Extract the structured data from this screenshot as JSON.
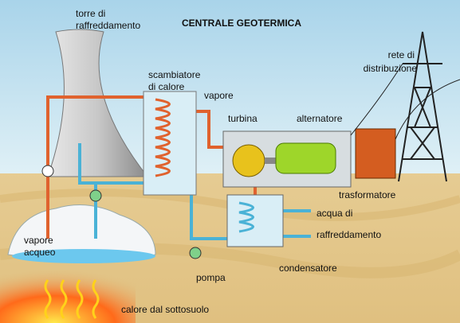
{
  "title": "CENTRALE GEOTERMICA",
  "labels": {
    "cooling_tower": [
      "torre di",
      "raffreddamento"
    ],
    "heat_exchanger": [
      "scambiatore",
      "di calore"
    ],
    "steam": "vapore",
    "turbine": "turbina",
    "alternator": "alternatore",
    "grid": [
      "rete di",
      "distribuzione"
    ],
    "transformer": "trasformatore",
    "cooling_water": [
      "acqua di",
      "raffreddamento"
    ],
    "condenser": "condensatore",
    "pump": "pompa",
    "water_vapor": [
      "vapore",
      "acqueo"
    ],
    "underground_heat": "calore dal sottosuolo"
  }
}
